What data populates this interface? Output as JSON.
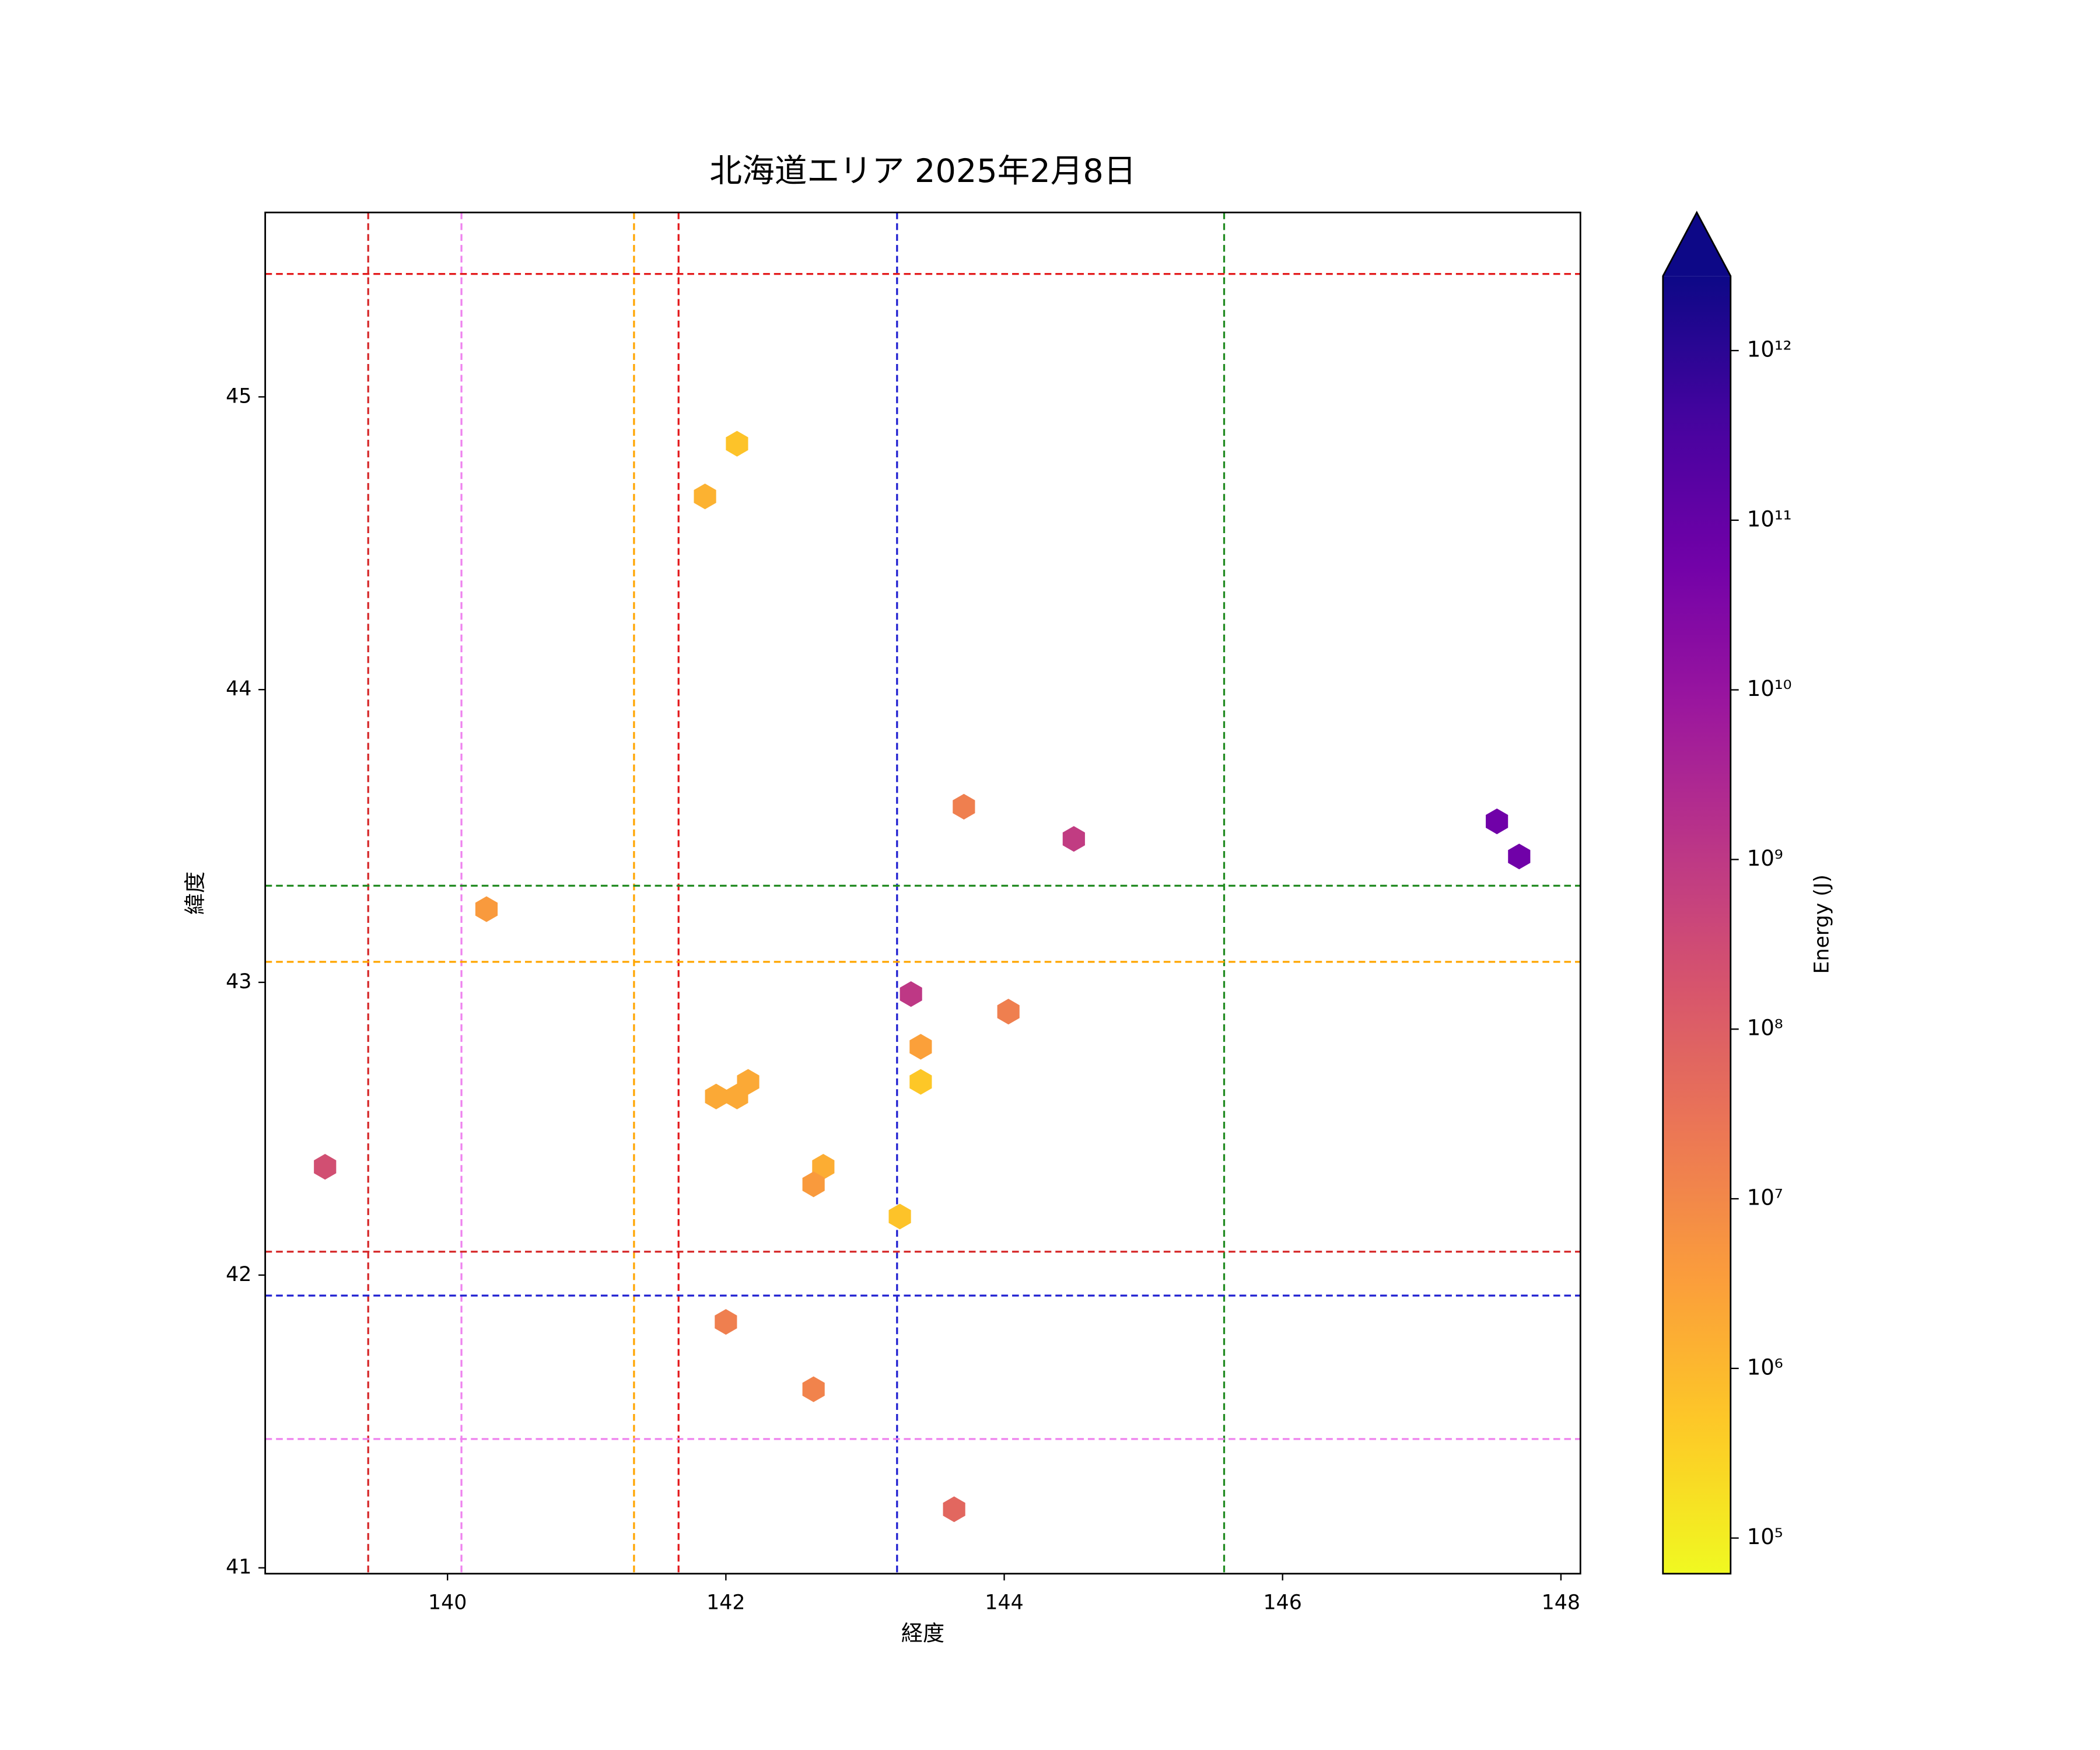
{
  "chart_data": {
    "type": "hexbin",
    "title": "北海道エリア 2025年2月8日",
    "x_label": "経度",
    "y_label": "緯度",
    "x": [
      139.12,
      140.28,
      141.85,
      142.08,
      143.71,
      144.5,
      147.54,
      147.7,
      143.33,
      144.03,
      143.4,
      143.4,
      142.16,
      141.93,
      142.08,
      142.7,
      142.63,
      143.25,
      142.0,
      142.63,
      143.64
    ],
    "y": [
      42.37,
      43.25,
      44.66,
      44.84,
      43.6,
      43.49,
      43.55,
      43.43,
      42.96,
      42.9,
      42.78,
      42.66,
      42.66,
      42.61,
      42.61,
      42.37,
      42.31,
      42.2,
      41.84,
      41.61,
      41.2
    ],
    "values": [
      250000000,
      4000000,
      1300000,
      600000,
      16000000,
      800000000,
      60000000000,
      60000000000,
      1000000000,
      16000000,
      3000000,
      500000,
      2000000,
      2000000,
      2000000,
      1600000,
      4000000,
      600000,
      16000000,
      13000000,
      60000000
    ],
    "colormap": "plasma_r",
    "xlim": [
      138.69,
      148.14
    ],
    "ylim": [
      40.98,
      45.63
    ],
    "xticks": [
      140,
      142,
      144,
      146,
      148
    ],
    "yticks": [
      41,
      42,
      43,
      44,
      45
    ],
    "vlines": [
      {
        "x": 139.43,
        "color": "#d62728"
      },
      {
        "x": 140.1,
        "color": "#ee82ee"
      },
      {
        "x": 141.34,
        "color": "#ffa500"
      },
      {
        "x": 141.66,
        "color": "#e31a1c"
      },
      {
        "x": 143.23,
        "color": "#1f1fd0"
      },
      {
        "x": 145.58,
        "color": "#228b22"
      }
    ],
    "hlines": [
      {
        "y": 45.42,
        "color": "#e31a1c"
      },
      {
        "y": 43.33,
        "color": "#228b22"
      },
      {
        "y": 43.07,
        "color": "#ffa500"
      },
      {
        "y": 42.08,
        "color": "#d62728"
      },
      {
        "y": 41.93,
        "color": "#1f1fd0"
      },
      {
        "y": 41.44,
        "color": "#ee82ee"
      }
    ],
    "colorbar_label": "Energy (J)",
    "colorbar_log": true,
    "colorbar_lim": [
      61660,
      2750000000000
    ],
    "colorbar_ticks": [
      {
        "value": 100000,
        "label": "10⁵"
      },
      {
        "value": 1000000,
        "label": "10⁶"
      },
      {
        "value": 10000000,
        "label": "10⁷"
      },
      {
        "value": 100000000,
        "label": "10⁸"
      },
      {
        "value": 1000000000,
        "label": "10⁹"
      },
      {
        "value": 10000000000,
        "label": "10¹⁰"
      },
      {
        "value": 100000000000,
        "label": "10¹¹"
      },
      {
        "value": 1000000000000,
        "label": "10¹²"
      }
    ],
    "colorbar_extend": "max"
  }
}
